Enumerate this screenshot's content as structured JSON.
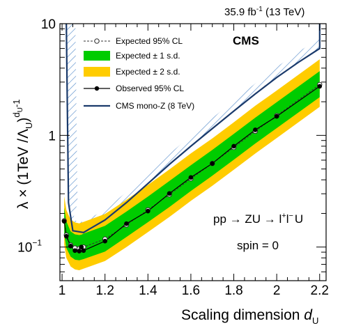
{
  "header": {
    "lumi": "35.9 fb",
    "lumi_exp": "-1",
    "energy": " (13 TeV)",
    "experiment": "CMS"
  },
  "annotations": {
    "process": "pp → ZU → l",
    "process_sup_plus": "+",
    "process_l2": "l",
    "process_sup_minus": "−",
    "process_tail": "U",
    "spin": "spin = 0"
  },
  "axis_labels": {
    "x_text": "Scaling dimension ",
    "x_var": "d",
    "x_sub": "U",
    "y_lambda": "λ × (1TeV /Λ",
    "y_sub": "U",
    "y_close": ")",
    "y_exp": "d",
    "y_exp_sub": "U",
    "y_exp_tail": "-1"
  },
  "legend": {
    "expected": "Expected 95% CL",
    "one_sd": "Expected ± 1 s.d.",
    "two_sd": "Expected ± 2 s.d.",
    "observed": "Observed 95% CL",
    "monoz": "CMS mono-Z (8 TeV)"
  },
  "colors": {
    "one_sd": "#00cc00",
    "two_sd": "#ffcc00",
    "monoz": "#1a3a6b",
    "hatch": "#5a8fcc"
  },
  "chart_data": {
    "type": "line",
    "x_scale": "linear",
    "y_scale": "log",
    "xlim": [
      0.99,
      2.23
    ],
    "ylim": [
      0.05,
      10
    ],
    "x_ticks": [
      {
        "v": 1.0,
        "label": "1"
      },
      {
        "v": 1.2,
        "label": "1.2"
      },
      {
        "v": 1.4,
        "label": "1.4"
      },
      {
        "v": 1.6,
        "label": "1.6"
      },
      {
        "v": 1.8,
        "label": "1.8"
      },
      {
        "v": 2.0,
        "label": "2"
      },
      {
        "v": 2.2,
        "label": "2.2"
      }
    ],
    "y_major_ticks": [
      {
        "v": 0.1,
        "label": "10",
        "exp": "−1"
      },
      {
        "v": 1,
        "label": "1",
        "exp": ""
      },
      {
        "v": 10,
        "label": "10",
        "exp": ""
      }
    ],
    "x": [
      1.01,
      1.02,
      1.04,
      1.06,
      1.08,
      1.09,
      1.1,
      1.2,
      1.3,
      1.4,
      1.5,
      1.6,
      1.7,
      1.8,
      1.9,
      2.0,
      2.2
    ],
    "expected": [
      0.172,
      0.128,
      0.104,
      0.098,
      0.097,
      0.098,
      0.1,
      0.118,
      0.158,
      0.215,
      0.295,
      0.41,
      0.56,
      0.78,
      1.09,
      1.5,
      2.85
    ],
    "one_sd_low": [
      0.13,
      0.098,
      0.082,
      0.077,
      0.076,
      0.077,
      0.078,
      0.091,
      0.123,
      0.167,
      0.228,
      0.318,
      0.435,
      0.605,
      0.845,
      1.16,
      2.2
    ],
    "one_sd_high": [
      0.225,
      0.17,
      0.138,
      0.13,
      0.128,
      0.129,
      0.132,
      0.155,
      0.208,
      0.283,
      0.39,
      0.54,
      0.74,
      1.03,
      1.44,
      1.98,
      3.76
    ],
    "two_sd_low": [
      0.105,
      0.08,
      0.067,
      0.063,
      0.062,
      0.063,
      0.064,
      0.075,
      0.1,
      0.136,
      0.186,
      0.259,
      0.354,
      0.492,
      0.687,
      0.946,
      1.8
    ],
    "two_sd_high": [
      0.285,
      0.215,
      0.176,
      0.166,
      0.163,
      0.165,
      0.168,
      0.198,
      0.265,
      0.36,
      0.495,
      0.69,
      0.94,
      1.31,
      1.84,
      2.52,
      4.8
    ],
    "observed": [
      0.17,
      0.125,
      0.102,
      0.093,
      0.092,
      0.1,
      0.093,
      0.113,
      0.162,
      0.21,
      0.302,
      0.42,
      0.56,
      0.8,
      1.12,
      1.48,
      2.75
    ],
    "monoz": {
      "x": [
        1.02,
        1.03,
        1.05,
        1.1,
        1.2,
        1.3,
        1.4,
        1.5,
        1.6,
        1.7,
        1.8,
        1.9,
        2.0,
        2.1,
        2.2,
        2.2
      ],
      "y": [
        10,
        0.25,
        0.14,
        0.135,
        0.175,
        0.25,
        0.37,
        0.55,
        0.8,
        1.15,
        1.65,
        2.35,
        3.3,
        4.5,
        6.0,
        10
      ]
    }
  }
}
